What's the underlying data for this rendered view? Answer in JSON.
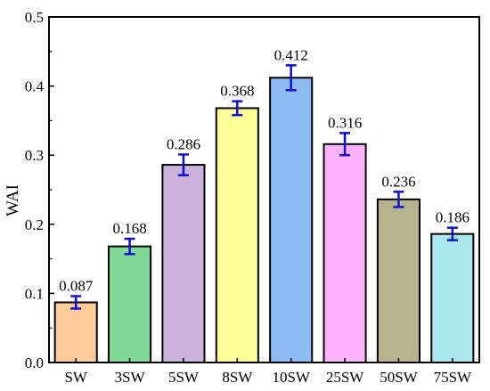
{
  "chart_data": {
    "type": "bar",
    "title": "",
    "xlabel": "",
    "ylabel": "WAI",
    "ylim": [
      0,
      0.5
    ],
    "yticks": [
      "0.0",
      "0.1",
      "0.2",
      "0.3",
      "0.4",
      "0.5"
    ],
    "grid": false,
    "categories": [
      "SW",
      "3SW",
      "5SW",
      "8SW",
      "10SW",
      "25SW",
      "50SW",
      "75SW"
    ],
    "values": [
      0.087,
      0.168,
      0.286,
      0.368,
      0.412,
      0.316,
      0.236,
      0.186
    ],
    "value_labels": [
      "0.087",
      "0.168",
      "0.286",
      "0.368",
      "0.412",
      "0.316",
      "0.236",
      "0.186"
    ],
    "errors": [
      0.009,
      0.011,
      0.015,
      0.01,
      0.018,
      0.016,
      0.011,
      0.009
    ],
    "bar_colors": [
      "#FFCC99",
      "#80D996",
      "#C9B3DB",
      "#FFFF99",
      "#8DBCF5",
      "#FFB3FF",
      "#B6B38F",
      "#A8E8EC"
    ],
    "error_bar_color": "#1010D0"
  }
}
